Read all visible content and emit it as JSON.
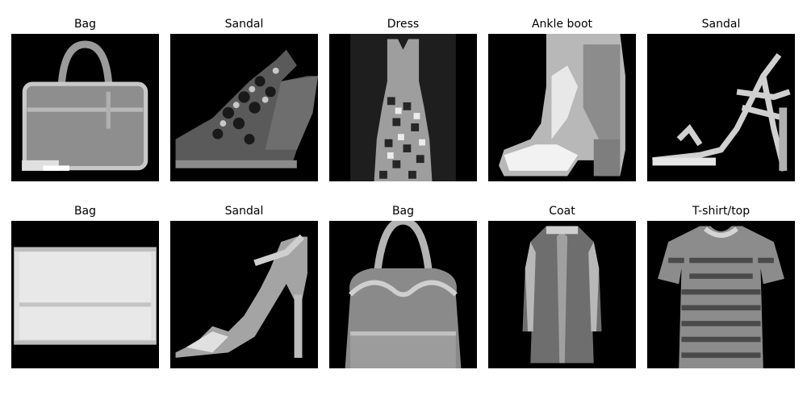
{
  "figure": {
    "background": "#ffffff",
    "image_background": "#000000",
    "rows": [
      [
        {
          "title": "Bag",
          "kind": "bag-handbag"
        },
        {
          "title": "Sandal",
          "kind": "sandal-wedge"
        },
        {
          "title": "Dress",
          "kind": "dress"
        },
        {
          "title": "Ankle boot",
          "kind": "ankle-boot"
        },
        {
          "title": "Sandal",
          "kind": "sandal-strappy"
        }
      ],
      [
        {
          "title": "Bag",
          "kind": "bag-clutch"
        },
        {
          "title": "Sandal",
          "kind": "sandal-heel"
        },
        {
          "title": "Bag",
          "kind": "bag-tote"
        },
        {
          "title": "Coat",
          "kind": "coat"
        },
        {
          "title": "T-shirt/top",
          "kind": "tshirt-striped"
        }
      ]
    ]
  }
}
